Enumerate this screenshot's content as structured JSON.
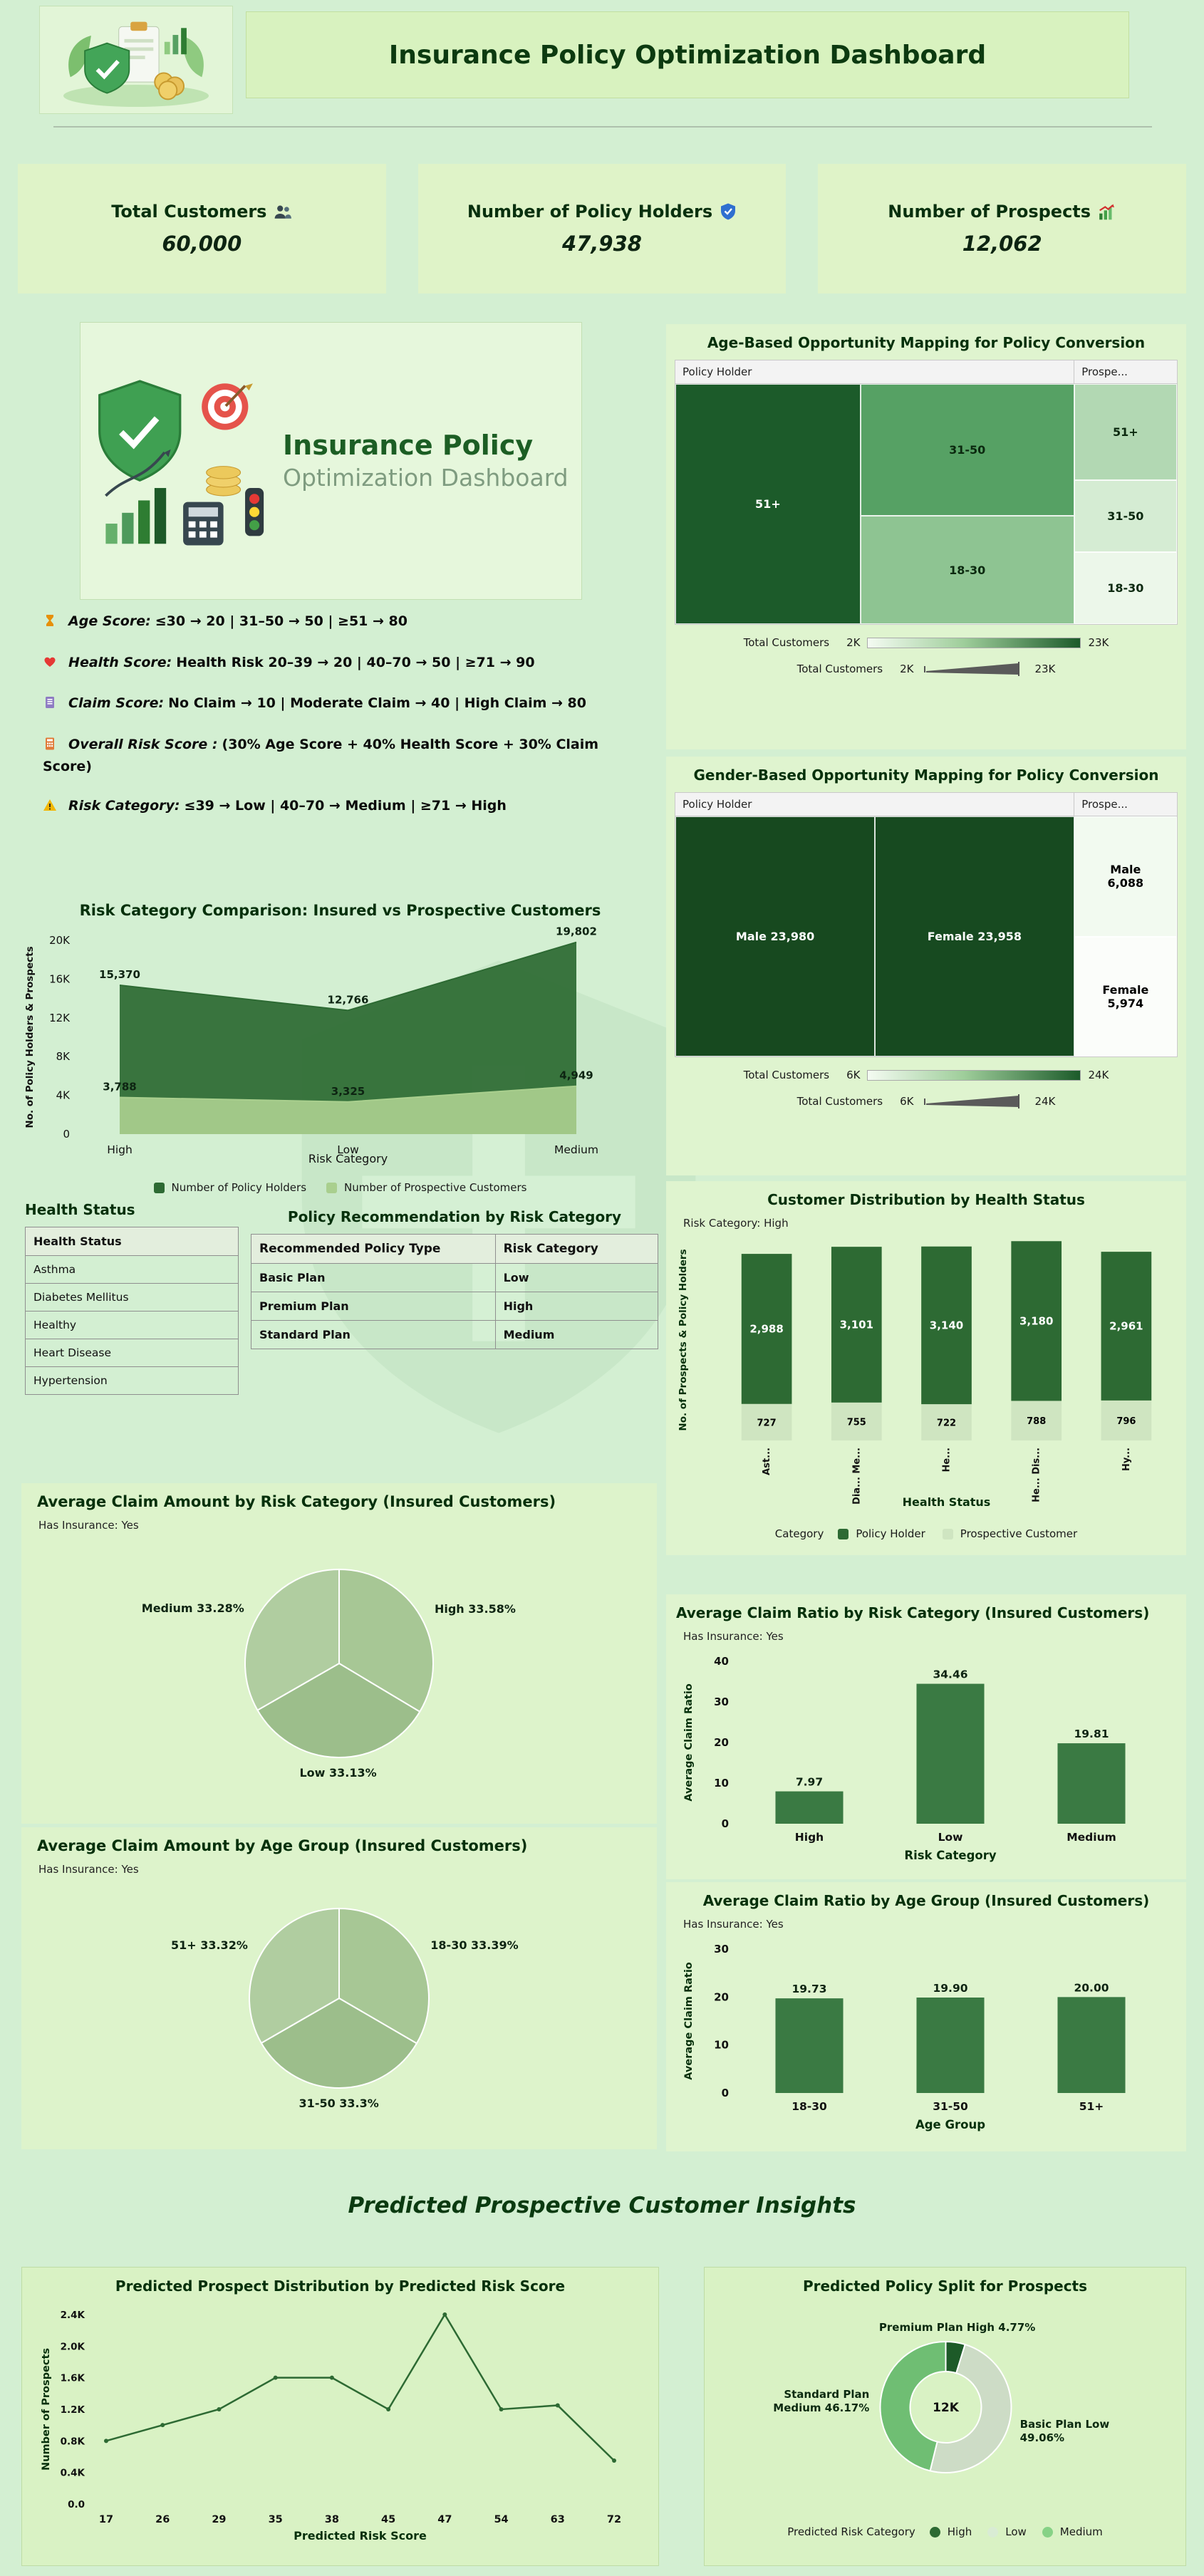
{
  "header": {
    "title": "Insurance Policy Optimization Dashboard"
  },
  "kpis": [
    {
      "label": "Total Customers",
      "icon": "people-icon",
      "value": "60,000"
    },
    {
      "label": "Number of Policy Holders",
      "icon": "shield-icon",
      "value": "47,938"
    },
    {
      "label": "Number of Prospects",
      "icon": "chart-up-icon",
      "value": "12,062"
    }
  ],
  "logo_card": {
    "line1": "Insurance Policy",
    "line2": "Optimization Dashboard"
  },
  "score_notes": [
    {
      "icon": "hourglass-icon",
      "icon_color": "#e6900a",
      "label": "Age Score:",
      "text": "≤30 → 20 | 31–50 → 50 | ≥51 → 80"
    },
    {
      "icon": "heart-icon",
      "icon_color": "#e53935",
      "label": "Health Score:",
      "text": "Health Risk 20–39 → 20 | 40–70 → 50 | ≥71 → 90"
    },
    {
      "icon": "notebook-icon",
      "icon_color": "#8e7cc3",
      "label": "Claim Score:",
      "text": "No Claim → 10 | Moderate Claim → 40 | High Claim → 80"
    },
    {
      "icon": "calculator-icon",
      "icon_color": "#e07b39",
      "label": "Overall Risk Score :",
      "text": "(30% Age Score + 40% Health Score + 30% Claim Score)"
    },
    {
      "icon": "warning-icon",
      "icon_color": "#f2b705",
      "label": "Risk Category:",
      "text": "≤39 → Low | 40–70 → Medium | ≥71 → High"
    }
  ],
  "tables": {
    "health_status": {
      "title": "Health Status",
      "header": "Health Status",
      "rows": [
        "Asthma",
        "Diabetes Mellitus",
        "Healthy",
        "Heart Disease",
        "Hypertension"
      ]
    },
    "policy_recommendation": {
      "title": "Policy Recommendation by Risk Category",
      "columns": [
        "Recommended Policy Type",
        "Risk Category"
      ],
      "rows": [
        [
          "Basic Plan",
          "Low"
        ],
        [
          "Premium Plan",
          "High"
        ],
        [
          "Standard Plan",
          "Medium"
        ]
      ]
    }
  },
  "insights_heading": "Predicted Prospective Customer Insights",
  "chart_data": {
    "risk_comparison": {
      "type": "area",
      "title": "Risk Category Comparison: Insured vs Prospective Customers",
      "categories": [
        "High",
        "Low",
        "Medium"
      ],
      "series": [
        {
          "name": "Number of Policy Holders",
          "values": [
            15370,
            12766,
            19802
          ],
          "labels": [
            "15,370",
            "12,766",
            "19,802"
          ],
          "color": "#2d6a33"
        },
        {
          "name": "Number of Prospective Customers",
          "values": [
            3788,
            3325,
            4949
          ],
          "labels": [
            "3,788",
            "3,325",
            "4,949"
          ],
          "color": "#a9cf8e"
        }
      ],
      "ylim": [
        0,
        20000
      ],
      "yticks": [
        0,
        4000,
        8000,
        12000,
        16000,
        20000
      ],
      "ytick_labels": [
        "0",
        "4K",
        "8K",
        "12K",
        "16K",
        "20K"
      ],
      "ylabel": "No. of Policy Holders & Prospects",
      "xlabel": "Risk Category"
    },
    "age_treemap": {
      "type": "treemap",
      "title": "Age-Based Opportunity Mapping for Policy Conversion",
      "group_headers": [
        "Policy Holder",
        "Prospe..."
      ],
      "header_split": 79.5,
      "cells": [
        {
          "group": "Policy Holder",
          "label": "51+",
          "x": 0,
          "y": 0,
          "w": 36.9,
          "h": 100,
          "color": "#1c5b2a",
          "text_color": "#ffffff"
        },
        {
          "group": "Policy Holder",
          "label": "31-50",
          "x": 36.9,
          "y": 0,
          "w": 42.6,
          "h": 55,
          "color": "#56a164",
          "text_color": "#0b290f"
        },
        {
          "group": "Policy Holder",
          "label": "18-30",
          "x": 36.9,
          "y": 55,
          "w": 42.6,
          "h": 45,
          "color": "#8ec492",
          "text_color": "#0b290f"
        },
        {
          "group": "Prospect",
          "label": "51+",
          "x": 79.5,
          "y": 0,
          "w": 20.5,
          "h": 40,
          "color": "#b2d8b3",
          "text_color": "#0b290f"
        },
        {
          "group": "Prospect",
          "label": "31-50",
          "x": 79.5,
          "y": 40,
          "w": 20.5,
          "h": 30,
          "color": "#d5ecd3",
          "text_color": "#0b290f"
        },
        {
          "group": "Prospect",
          "label": "18-30",
          "x": 79.5,
          "y": 70,
          "w": 20.5,
          "h": 30,
          "color": "#ecf7ea",
          "text_color": "#0b290f"
        }
      ],
      "legends": [
        {
          "label": "Total Customers",
          "min": "2K",
          "max": "23K",
          "kind": "gradient"
        },
        {
          "label": "Total Customers",
          "min": "2K",
          "max": "23K",
          "kind": "size"
        }
      ]
    },
    "gender_treemap": {
      "type": "treemap",
      "title": "Gender-Based Opportunity Mapping for Policy Conversion",
      "group_headers": [
        "Policy Holder",
        "Prospe..."
      ],
      "header_split": 79.5,
      "cells": [
        {
          "group": "Policy Holder",
          "label": "Male 23,980",
          "x": 0,
          "y": 0,
          "w": 39.8,
          "h": 100,
          "color": "#17491f",
          "text_color": "#ffffff"
        },
        {
          "group": "Policy Holder",
          "label": "Female 23,958",
          "x": 39.8,
          "y": 0,
          "w": 39.7,
          "h": 100,
          "color": "#174a20",
          "text_color": "#ffffff"
        },
        {
          "group": "Prospect",
          "label": "Male\n6,088",
          "x": 79.5,
          "y": 0,
          "w": 20.5,
          "h": 50,
          "color": "#f2faf0",
          "text_color": "#000000"
        },
        {
          "group": "Prospect",
          "label": "Female\n5,974",
          "x": 79.5,
          "y": 50,
          "w": 20.5,
          "h": 50,
          "color": "#fbfdfa",
          "text_color": "#000000"
        }
      ],
      "legends": [
        {
          "label": "Total Customers",
          "min": "6K",
          "max": "24K",
          "kind": "gradient"
        },
        {
          "label": "Total Customers",
          "min": "6K",
          "max": "24K",
          "kind": "size"
        }
      ]
    },
    "health_distribution": {
      "type": "stacked_bar",
      "title": "Customer Distribution by Health Status",
      "filter_label": "Risk Category: High",
      "categories": [
        "Ast...",
        "Dia... Me...",
        "He...",
        "He... Dis...",
        "Hy..."
      ],
      "series": [
        {
          "name": "Prospective Customer",
          "values": [
            727,
            755,
            722,
            788,
            796
          ],
          "labels": [
            "727",
            "755",
            "722",
            "788",
            "796"
          ],
          "color": "#cfe5c1",
          "label_color": "#000000"
        },
        {
          "name": "Policy Holder",
          "values": [
            2988,
            3101,
            3140,
            3180,
            2961
          ],
          "labels": [
            "2,988",
            "3,101",
            "3,140",
            "3,180",
            "2,961"
          ],
          "color": "#2d6a33",
          "label_color": "#ffffff"
        }
      ],
      "ylim": [
        0,
        4000
      ],
      "ylabel": "No. of Prospects & Policy Holders",
      "xlabel": "Health Status",
      "legend_title": "Category",
      "legend": [
        {
          "name": "Policy Holder",
          "color": "#2d6a33"
        },
        {
          "name": "Prospective Customer",
          "color": "#cfe5c1"
        }
      ]
    },
    "claim_pie_risk": {
      "type": "pie",
      "title": "Average Claim Amount by Risk Category (Insured Customers)",
      "filter_label": "Has Insurance: Yes",
      "slices": [
        {
          "label": "High",
          "pct": 33.58,
          "display": "High 33.58%",
          "color": "#a7c795"
        },
        {
          "label": "Low",
          "pct": 33.13,
          "display": "Low 33.13%",
          "color": "#9cbe8b"
        },
        {
          "label": "Medium",
          "pct": 33.28,
          "display": "Medium 33.28%",
          "color": "#b0cda0"
        }
      ]
    },
    "claim_pie_age": {
      "type": "pie",
      "title": "Average Claim Amount by Age Group (Insured Customers)",
      "filter_label": "Has Insurance: Yes",
      "slices": [
        {
          "label": "18-30",
          "pct": 33.39,
          "display": "18-30 33.39%",
          "color": "#a7c795"
        },
        {
          "label": "31-50",
          "pct": 33.3,
          "display": "31-50 33.3%",
          "color": "#9cbe8b"
        },
        {
          "label": "51+",
          "pct": 33.32,
          "display": "51+ 33.32%",
          "color": "#b0cda0"
        }
      ]
    },
    "claim_ratio_risk": {
      "type": "bar",
      "title": "Average Claim Ratio by Risk Category (Insured Customers)",
      "filter_label": "Has Insurance: Yes",
      "categories": [
        "High",
        "Low",
        "Medium"
      ],
      "values": [
        7.97,
        34.46,
        19.81
      ],
      "labels": [
        "7.97",
        "34.46",
        "19.81"
      ],
      "bar_color": "#3a7a43",
      "ylim": [
        0,
        40
      ],
      "yticks": [
        0,
        10,
        20,
        30,
        40
      ],
      "ytick_labels": [
        "0",
        "10",
        "20",
        "30",
        "40"
      ],
      "ylabel": "Average Claim Ratio",
      "xlabel": "Risk Category"
    },
    "claim_ratio_age": {
      "type": "bar",
      "title": "Average Claim Ratio by Age Group (Insured Customers)",
      "filter_label": "Has Insurance: Yes",
      "categories": [
        "18-30",
        "31-50",
        "51+"
      ],
      "values": [
        19.73,
        19.9,
        20.0
      ],
      "labels": [
        "19.73",
        "19.90",
        "20.00"
      ],
      "bar_color": "#3a7a43",
      "ylim": [
        0,
        30
      ],
      "yticks": [
        0,
        10,
        20,
        30
      ],
      "ytick_labels": [
        "0",
        "10",
        "20",
        "30"
      ],
      "ylabel": "Average Claim Ratio",
      "xlabel": "Age Group"
    },
    "prospect_line": {
      "type": "line",
      "title": "Predicted Prospect Distribution by Predicted Risk Score",
      "categories": [
        "17",
        "26",
        "29",
        "35",
        "38",
        "45",
        "47",
        "54",
        "63",
        "72"
      ],
      "values": [
        800,
        1000,
        1200,
        1600,
        1600,
        1200,
        2400,
        1200,
        1250,
        550
      ],
      "line_color": "#2d6a33",
      "ylim": [
        0,
        2400
      ],
      "yticks": [
        0,
        400,
        800,
        1200,
        1600,
        2000,
        2400
      ],
      "ytick_labels": [
        "0.0",
        "0.4K",
        "0.8K",
        "1.2K",
        "1.6K",
        "2.0K",
        "2.4K"
      ],
      "ylabel": "Number of Prospects",
      "xlabel": "Predicted Risk Score"
    },
    "policy_donut": {
      "type": "donut",
      "title": "Predicted Policy Split for Prospects",
      "center_label": "12K",
      "slices": [
        {
          "label": "Premium Plan High",
          "pct": 4.77,
          "display": "Premium Plan High 4.77%",
          "color": "#1d5a28"
        },
        {
          "label": "Basic Plan Low",
          "pct": 49.06,
          "display": "Basic Plan Low\n49.06%",
          "color": "#cddcc6"
        },
        {
          "label": "Standard Plan Medium",
          "pct": 46.17,
          "display": "Standard Plan\nMedium 46.17%",
          "color": "#6fbe73"
        }
      ],
      "legend_title": "Predicted Risk Category",
      "legend": [
        {
          "name": "High",
          "color": "#2d6a33"
        },
        {
          "name": "Low",
          "color": "#d9ecd4"
        },
        {
          "name": "Medium",
          "color": "#86d286"
        }
      ]
    }
  }
}
